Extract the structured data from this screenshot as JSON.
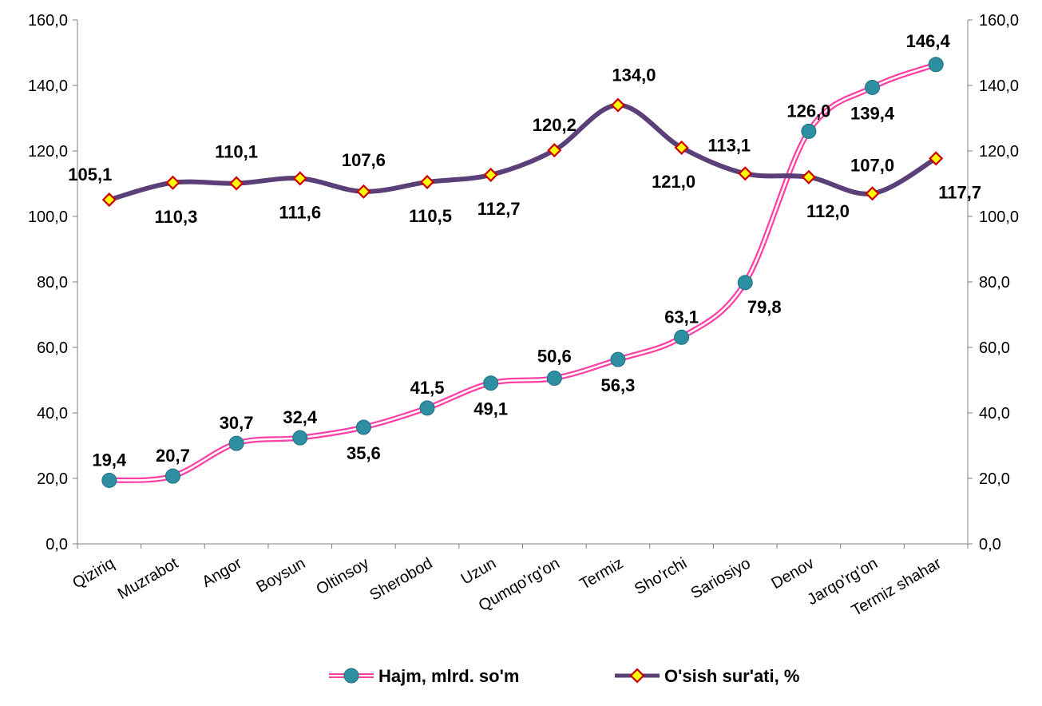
{
  "chart_data": {
    "type": "line",
    "title": "",
    "xlabel": "",
    "ylabel": "",
    "categories": [
      "Qiziriq",
      "Muzrabot",
      "Angor",
      "Boysun",
      "Oltinsoy",
      "Sherobod",
      "Uzun",
      "Qumqo'rg'on",
      "Termiz",
      "Sho'rchi",
      "Sariosiyo",
      "Denov",
      "Jarqo'rg'on",
      "Termiz shahar"
    ],
    "ylim": [
      0,
      160
    ],
    "y2lim": [
      0,
      160
    ],
    "y_ticks": [
      "0,0",
      "20,0",
      "40,0",
      "60,0",
      "80,0",
      "100,0",
      "120,0",
      "140,0",
      "160,0"
    ],
    "grid": false,
    "legend_position": "bottom",
    "series": [
      {
        "name": "Hajm, mlrd. so'm",
        "color": "#ff3fa5",
        "marker_color": "#2e8fa3",
        "marker": "circle",
        "values": [
          19.4,
          20.7,
          30.7,
          32.4,
          35.6,
          41.5,
          49.1,
          50.6,
          56.3,
          63.1,
          79.8,
          126.0,
          139.4,
          146.4
        ],
        "labels": [
          "19,4",
          "20,7",
          "30,7",
          "32,4",
          "35,6",
          "41,5",
          "49,1",
          "50,6",
          "56,3",
          "63,1",
          "79,8",
          "126,0",
          "139,4",
          "146,4"
        ]
      },
      {
        "name": "O'sish sur'ati, %",
        "color": "#5b3f78",
        "marker_color": "#ffff00",
        "marker_edge": "#cc0000",
        "marker": "diamond",
        "values": [
          105.1,
          110.3,
          110.1,
          111.6,
          107.6,
          110.5,
          112.7,
          120.2,
          134.0,
          121.0,
          113.1,
          112.0,
          107.0,
          117.7
        ],
        "labels": [
          "105,1",
          "110,3",
          "110,1",
          "111,6",
          "107,6",
          "110,5",
          "112,7",
          "120,2",
          "134,0",
          "121,0",
          "113,1",
          "112,0",
          "107,0",
          "117,7"
        ]
      }
    ]
  }
}
